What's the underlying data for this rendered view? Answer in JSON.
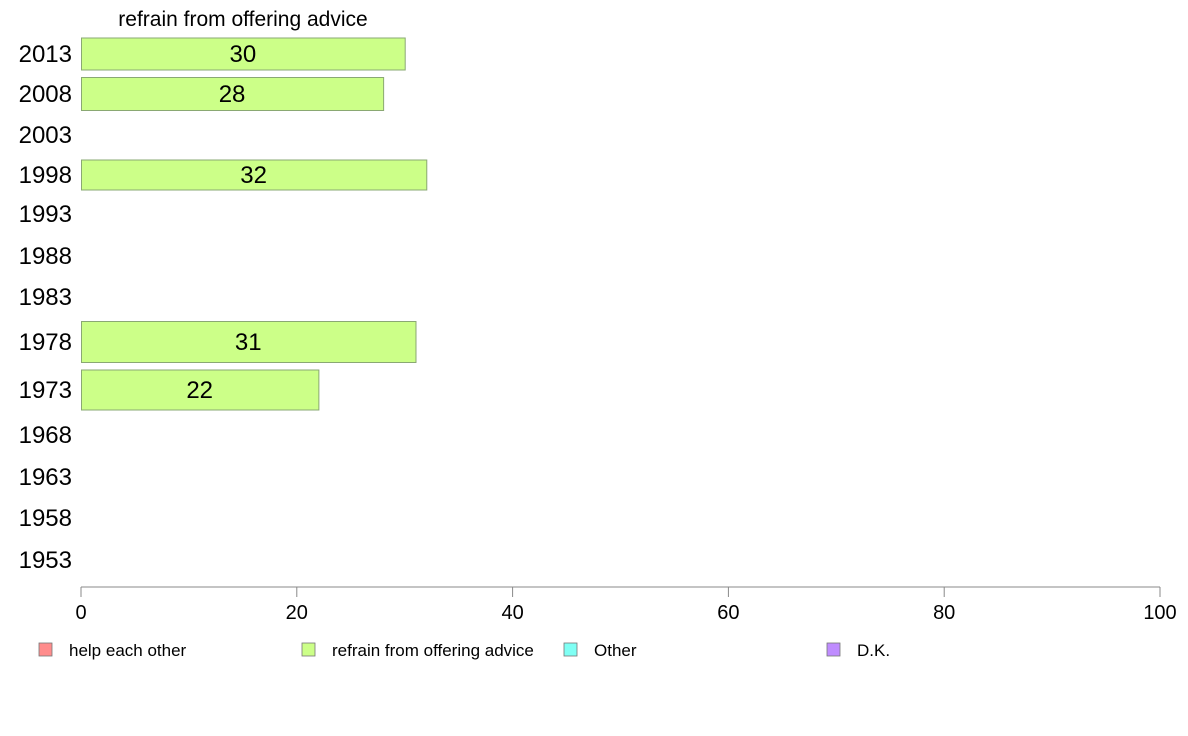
{
  "chart_data": {
    "type": "bar",
    "orientation": "horizontal",
    "title": "refrain from offering advice",
    "categories": [
      "2013",
      "2008",
      "2003",
      "1998",
      "1993",
      "1988",
      "1983",
      "1978",
      "1973",
      "1968",
      "1963",
      "1958",
      "1953"
    ],
    "series": [
      {
        "name": "refrain from offering advice",
        "color": "#ccff88",
        "values": [
          30,
          28,
          null,
          32,
          null,
          null,
          null,
          31,
          22,
          null,
          null,
          null,
          null
        ]
      }
    ],
    "xlim": [
      0,
      100
    ],
    "xticks": [
      "0",
      "20",
      "40",
      "60",
      "80",
      "100"
    ],
    "grid": false,
    "legend_position": "bottom",
    "legend": [
      {
        "label": "help each other",
        "color": "#ff8c8c"
      },
      {
        "label": "refrain from offering advice",
        "color": "#ccff88"
      },
      {
        "label": "Other",
        "color": "#7ffff4"
      },
      {
        "label": "D.K.",
        "color": "#bf8cff"
      }
    ]
  }
}
